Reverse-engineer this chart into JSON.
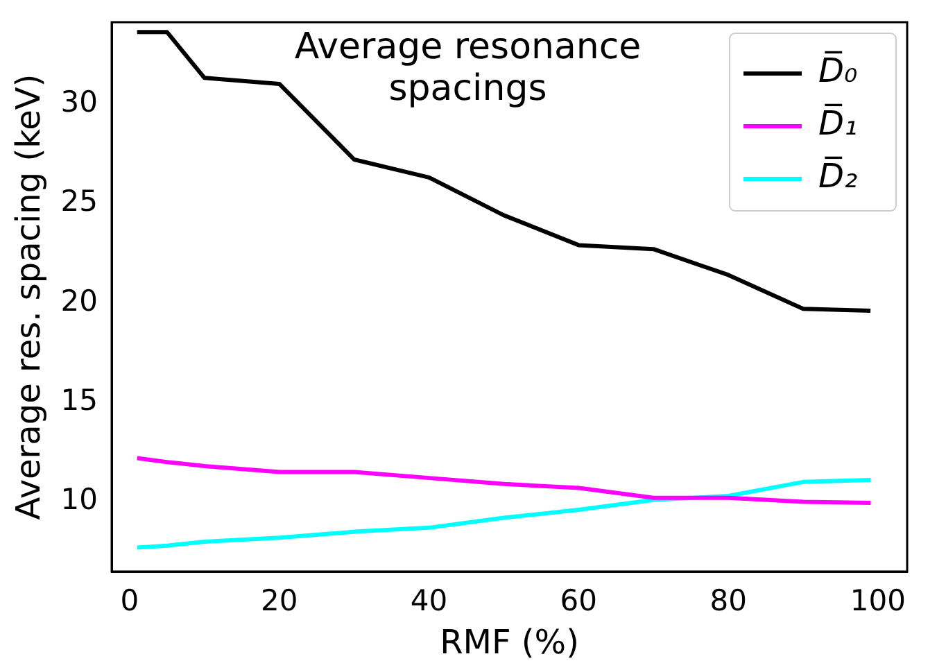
{
  "chart_data": {
    "type": "line",
    "title": "Average resonance spacings",
    "xlabel": "RMF (%)",
    "ylabel": "Average res. spacing (keV)",
    "x": [
      1,
      5,
      10,
      20,
      30,
      40,
      50,
      60,
      70,
      80,
      90,
      99
    ],
    "series": [
      {
        "name": "D̅₀",
        "color": "#000000",
        "values": [
          33.6,
          33.6,
          31.3,
          31.0,
          27.2,
          26.3,
          24.4,
          22.9,
          22.7,
          21.4,
          19.7,
          19.6
        ]
      },
      {
        "name": "D̅₁",
        "color": "#ff00ff",
        "values": [
          12.2,
          12.0,
          11.8,
          11.5,
          11.5,
          11.2,
          10.9,
          10.7,
          10.2,
          10.2,
          10.0,
          9.95
        ]
      },
      {
        "name": "D̅₂",
        "color": "#00ffff",
        "values": [
          7.7,
          7.8,
          8.0,
          8.2,
          8.5,
          8.7,
          9.2,
          9.6,
          10.1,
          10.3,
          11.0,
          11.1
        ]
      }
    ],
    "xlim": [
      -2.4,
      103.9
    ],
    "ylim": [
      6.5,
      34.1
    ],
    "xticks": [
      0,
      20,
      40,
      60,
      80,
      100
    ],
    "yticks": [
      10,
      15,
      20,
      25,
      30
    ],
    "grid": false,
    "legend": "top right",
    "marker": "none",
    "line_style": "solid"
  }
}
